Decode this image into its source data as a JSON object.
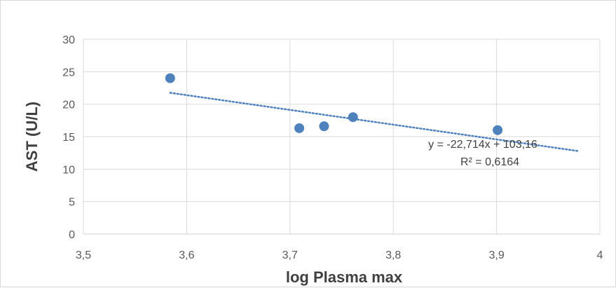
{
  "chart_data": {
    "type": "scatter",
    "xlabel": "log Plasma max",
    "ylabel": "AST (U/L)",
    "xlim": [
      3.5,
      4
    ],
    "ylim": [
      0,
      30
    ],
    "x_ticks": [
      "3,5",
      "3,6",
      "3,7",
      "3,8",
      "3,9",
      "4"
    ],
    "y_ticks": [
      "0",
      "5",
      "10",
      "15",
      "20",
      "25",
      "30"
    ],
    "grid": true,
    "points": [
      {
        "x": 3.584,
        "y": 24.0
      },
      {
        "x": 3.709,
        "y": 16.3
      },
      {
        "x": 3.733,
        "y": 16.6
      },
      {
        "x": 3.761,
        "y": 18.0
      },
      {
        "x": 3.901,
        "y": 16.0
      }
    ],
    "trendline": {
      "type": "linear",
      "slope": -22.714,
      "intercept": 103.16,
      "x_range": [
        3.584,
        3.98
      ],
      "style": "dotted"
    },
    "annotations": [
      "y = -22,714x + 103,16",
      "R² = 0,6164"
    ],
    "colors": {
      "marker": "#4f81bd",
      "trendline": "#4f81bd",
      "grid": "#d9d9d9"
    }
  }
}
